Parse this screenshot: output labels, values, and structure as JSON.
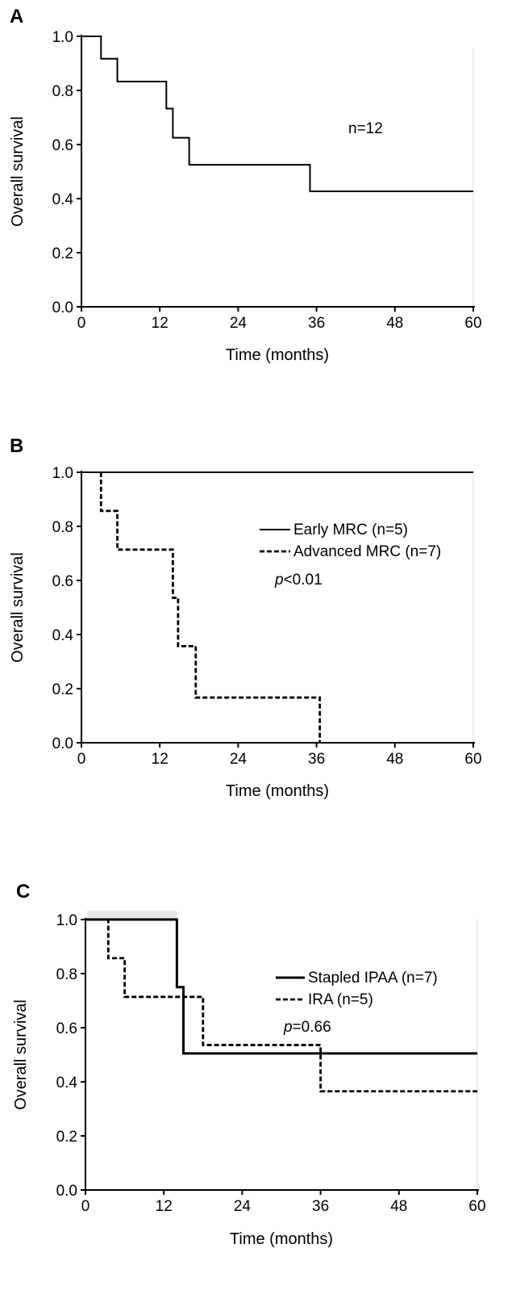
{
  "chart_data": [
    {
      "type": "line",
      "panel_label": "A",
      "xlabel": "Time (months)",
      "ylabel": "Overall survival",
      "xlim": [
        0,
        60
      ],
      "ylim": [
        0,
        1
      ],
      "xticks": [
        "0",
        "12",
        "24",
        "36",
        "48",
        "60"
      ],
      "yticks": [
        "0.0",
        "0.2",
        "0.4",
        "0.6",
        "0.8",
        "1.0"
      ],
      "grid": false,
      "annotation": "n=12",
      "series": [
        {
          "name": "",
          "style": "solid",
          "steps": [
            [
              0,
              1.0
            ],
            [
              3,
              0.917
            ],
            [
              5.5,
              0.833
            ],
            [
              13,
              0.733
            ],
            [
              14,
              0.625
            ],
            [
              16.5,
              0.525
            ],
            [
              35,
              0.427
            ],
            [
              60,
              0.427
            ]
          ]
        }
      ]
    },
    {
      "type": "line",
      "panel_label": "B",
      "xlabel": "Time (months)",
      "ylabel": "Overall survival",
      "xlim": [
        0,
        60
      ],
      "ylim": [
        0,
        1
      ],
      "xticks": [
        "0",
        "12",
        "24",
        "36",
        "48",
        "60"
      ],
      "yticks": [
        "0.0",
        "0.2",
        "0.4",
        "0.6",
        "0.8",
        "1.0"
      ],
      "grid": false,
      "legend_position": "right",
      "p_value_prefix": "p",
      "p_value_rest": "<0.01",
      "series": [
        {
          "name": "Early MRC (n=5)",
          "style": "solid",
          "steps": [
            [
              0,
              1.0
            ],
            [
              60,
              1.0
            ]
          ]
        },
        {
          "name": "Advanced MRC (n=7)",
          "style": "dashed",
          "steps": [
            [
              3,
              1.0
            ],
            [
              3,
              0.857
            ],
            [
              5.5,
              0.714
            ],
            [
              14,
              0.536
            ],
            [
              14.8,
              0.357
            ],
            [
              17.5,
              0.167
            ],
            [
              36.5,
              0.0
            ]
          ]
        }
      ]
    },
    {
      "type": "line",
      "panel_label": "C",
      "xlabel": "Time (months)",
      "ylabel": "Overall survival",
      "xlim": [
        0,
        60
      ],
      "ylim": [
        0,
        1
      ],
      "xticks": [
        "0",
        "12",
        "24",
        "36",
        "48",
        "60"
      ],
      "yticks": [
        "0.0",
        "0.2",
        "0.4",
        "0.6",
        "0.8",
        "1.0"
      ],
      "grid": false,
      "legend_position": "top-right",
      "p_value_prefix": "p",
      "p_value_rest": "=0.66",
      "series": [
        {
          "name": "Stapled IPAA (n=7)",
          "style": "solid-bold",
          "steps": [
            [
              0,
              1.0
            ],
            [
              14,
              0.75
            ],
            [
              15,
              0.505
            ],
            [
              60,
              0.505
            ]
          ]
        },
        {
          "name": "IRA (n=5)",
          "style": "dashed",
          "steps": [
            [
              0,
              1.0
            ],
            [
              3.5,
              0.857
            ],
            [
              6,
              0.714
            ],
            [
              18,
              0.536
            ],
            [
              36,
              0.365
            ],
            [
              60,
              0.365
            ]
          ]
        }
      ]
    }
  ]
}
